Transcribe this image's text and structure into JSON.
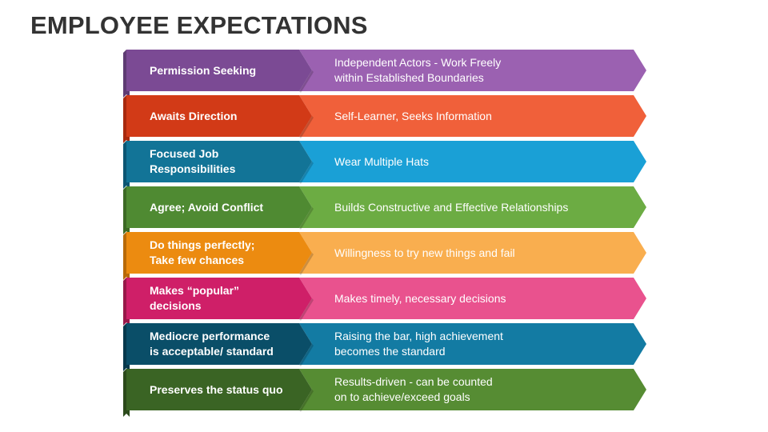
{
  "title": "EMPLOYEE EXPECTATIONS",
  "rows": [
    {
      "left": "Permission Seeking",
      "right": "Independent Actors - Work Freely\nwithin Established Boundaries",
      "dark": "#5e3b73",
      "left_color": "#7b4a94",
      "right_color": "#9b61b1"
    },
    {
      "left": "Awaits Direction",
      "right": "Self-Learner, Seeks Information",
      "dark": "#a8290e",
      "left_color": "#d23a17",
      "right_color": "#f0603a"
    },
    {
      "left": "Focused Job\nResponsibilities",
      "right": "Wear Multiple Hats",
      "dark": "#0b5673",
      "left_color": "#127497",
      "right_color": "#1aa0d6"
    },
    {
      "left": "Agree; Avoid Conflict",
      "right": "Builds Constructive and Effective Relationships",
      "dark": "#3c6a25",
      "left_color": "#4f8a32",
      "right_color": "#6cac43"
    },
    {
      "left": "Do things perfectly;\nTake few chances",
      "right": "Willingness to try new things and fail",
      "dark": "#b86a08",
      "left_color": "#ec8b10",
      "right_color": "#f9ae4f"
    },
    {
      "left": "Makes “popular”\ndecisions",
      "right": "Makes timely, necessary decisions",
      "dark": "#981849",
      "left_color": "#cf1f68",
      "right_color": "#e9528e"
    },
    {
      "left": "Mediocre performance\nis acceptable/ standard",
      "right": "Raising the bar, high achievement\nbecomes the standard",
      "dark": "#06384c",
      "left_color": "#0a4e68",
      "right_color": "#137ba3"
    },
    {
      "left": "Preserves the status quo",
      "right": "Results-driven - can be counted\non to achieve/exceed goals",
      "dark": "#2b4a1b",
      "left_color": "#3a6424",
      "right_color": "#568c33"
    }
  ]
}
